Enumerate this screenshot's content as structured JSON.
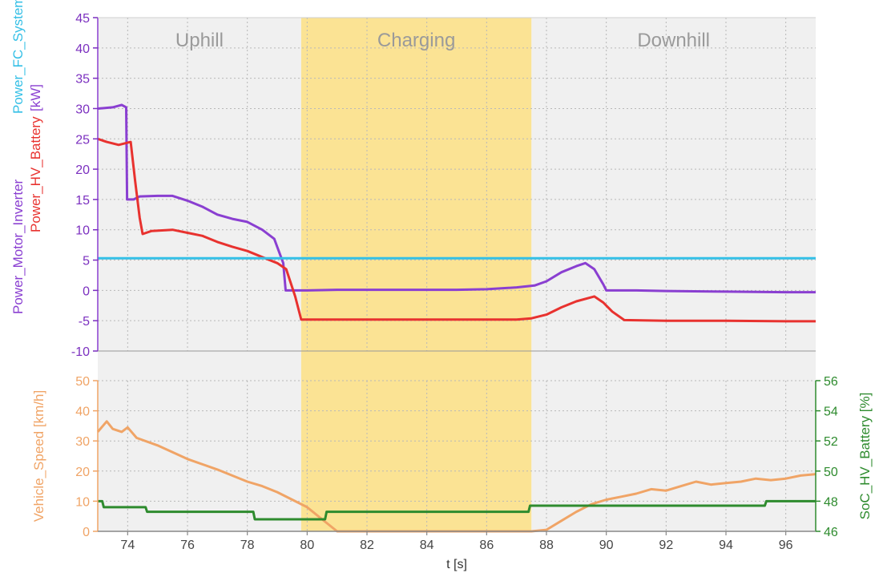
{
  "chart_data": [
    {
      "type": "line",
      "panel": "power",
      "x_range": [
        73,
        97
      ],
      "ylim": [
        -10,
        45
      ],
      "y_ticks": [
        -10,
        -5,
        0,
        5,
        10,
        15,
        20,
        25,
        30,
        35,
        40,
        45
      ],
      "y_tick_color": "#7b2fbf",
      "ylabel_lines": [
        {
          "text": "Power_Motor_Inverter",
          "color": "#8a3fd1"
        },
        {
          "text": "Power_HV_Battery",
          "color": "#e8322f"
        },
        {
          "text": "Power_FC_System",
          "color": "#33bfe6"
        },
        {
          "text": "[kW]",
          "color": "#8a3fd1"
        }
      ],
      "phases": [
        {
          "label": "Uphill",
          "x_start": 73.0,
          "x_end": 79.8,
          "fill": "#f0f0f0"
        },
        {
          "label": "Charging",
          "x_start": 79.8,
          "x_end": 87.5,
          "fill": "#fbe394"
        },
        {
          "label": "Downhill",
          "x_start": 87.5,
          "x_end": 97.0,
          "fill": "#f0f0f0"
        }
      ],
      "series": [
        {
          "name": "Power_Motor_Inverter",
          "color": "#8a3fd1",
          "points": [
            [
              73.0,
              30.0
            ],
            [
              73.5,
              30.2
            ],
            [
              73.8,
              30.6
            ],
            [
              73.95,
              30.2
            ],
            [
              73.98,
              15.0
            ],
            [
              74.2,
              15.0
            ],
            [
              74.4,
              15.5
            ],
            [
              75.0,
              15.6
            ],
            [
              75.5,
              15.6
            ],
            [
              76.0,
              14.8
            ],
            [
              76.5,
              13.8
            ],
            [
              77.0,
              12.5
            ],
            [
              77.5,
              11.8
            ],
            [
              78.0,
              11.3
            ],
            [
              78.5,
              10.0
            ],
            [
              78.9,
              8.5
            ],
            [
              79.2,
              4.5
            ],
            [
              79.28,
              0.0
            ],
            [
              80.0,
              0.0
            ],
            [
              81.0,
              0.1
            ],
            [
              82.0,
              0.1
            ],
            [
              83.0,
              0.1
            ],
            [
              84.0,
              0.1
            ],
            [
              85.0,
              0.1
            ],
            [
              86.0,
              0.2
            ],
            [
              87.0,
              0.5
            ],
            [
              87.6,
              0.8
            ],
            [
              88.0,
              1.5
            ],
            [
              88.5,
              3.0
            ],
            [
              89.0,
              4.0
            ],
            [
              89.3,
              4.5
            ],
            [
              89.6,
              3.5
            ],
            [
              89.9,
              1.0
            ],
            [
              90.0,
              0.0
            ],
            [
              91.0,
              0.0
            ],
            [
              92.0,
              -0.1
            ],
            [
              94.0,
              -0.2
            ],
            [
              96.0,
              -0.3
            ],
            [
              97.0,
              -0.3
            ]
          ]
        },
        {
          "name": "Power_HV_Battery",
          "color": "#e8322f",
          "points": [
            [
              73.0,
              25.0
            ],
            [
              73.3,
              24.5
            ],
            [
              73.7,
              24.0
            ],
            [
              74.1,
              24.5
            ],
            [
              74.25,
              18.0
            ],
            [
              74.4,
              12.0
            ],
            [
              74.5,
              9.3
            ],
            [
              74.8,
              9.8
            ],
            [
              75.5,
              10.0
            ],
            [
              76.0,
              9.5
            ],
            [
              76.5,
              9.0
            ],
            [
              77.0,
              8.0
            ],
            [
              77.5,
              7.2
            ],
            [
              78.0,
              6.5
            ],
            [
              78.5,
              5.5
            ],
            [
              79.0,
              4.5
            ],
            [
              79.3,
              3.5
            ],
            [
              79.6,
              -1.0
            ],
            [
              79.8,
              -4.8
            ],
            [
              81.0,
              -4.8
            ],
            [
              82.0,
              -4.8
            ],
            [
              83.0,
              -4.8
            ],
            [
              84.0,
              -4.8
            ],
            [
              85.0,
              -4.8
            ],
            [
              86.0,
              -4.8
            ],
            [
              87.0,
              -4.8
            ],
            [
              87.5,
              -4.6
            ],
            [
              88.0,
              -4.0
            ],
            [
              88.5,
              -2.8
            ],
            [
              89.0,
              -1.8
            ],
            [
              89.6,
              -1.0
            ],
            [
              89.9,
              -2.0
            ],
            [
              90.2,
              -3.5
            ],
            [
              90.6,
              -4.9
            ],
            [
              92.0,
              -5.0
            ],
            [
              94.0,
              -5.0
            ],
            [
              96.0,
              -5.1
            ],
            [
              97.0,
              -5.1
            ]
          ]
        },
        {
          "name": "Power_FC_System",
          "color": "#33bfe6",
          "points": [
            [
              73.0,
              5.3
            ],
            [
              97.0,
              5.3
            ]
          ]
        }
      ]
    },
    {
      "type": "line",
      "panel": "speed_soc",
      "x_range": [
        73,
        97
      ],
      "xlabel": "t [s]",
      "x_ticks": [
        74,
        76,
        78,
        80,
        82,
        84,
        86,
        88,
        90,
        92,
        94,
        96
      ],
      "ylim": [
        0,
        50
      ],
      "y_ticks": [
        0,
        10,
        20,
        30,
        40,
        50
      ],
      "ylabel": "Vehicle_Speed [km/h]",
      "ylabel_color": "#f0a466",
      "y2lim": [
        46,
        56
      ],
      "y2_ticks": [
        46,
        48,
        50,
        52,
        54,
        56
      ],
      "y2label": "SoC_HV_Battery [%]",
      "y2label_color": "#2e8b2e",
      "series": [
        {
          "name": "Vehicle_Speed",
          "color": "#f0a466",
          "axis": "left",
          "points": [
            [
              73.0,
              33.0
            ],
            [
              73.3,
              36.5
            ],
            [
              73.5,
              34.0
            ],
            [
              73.8,
              33.0
            ],
            [
              74.0,
              34.5
            ],
            [
              74.3,
              31.0
            ],
            [
              75.0,
              28.5
            ],
            [
              76.0,
              24.0
            ],
            [
              77.0,
              20.5
            ],
            [
              78.0,
              16.5
            ],
            [
              78.5,
              15.0
            ],
            [
              79.0,
              13.0
            ],
            [
              79.5,
              10.5
            ],
            [
              80.0,
              8.0
            ],
            [
              80.5,
              4.0
            ],
            [
              81.0,
              0.0
            ],
            [
              85.0,
              0.0
            ],
            [
              87.5,
              0.0
            ],
            [
              88.0,
              0.5
            ],
            [
              88.5,
              3.5
            ],
            [
              89.0,
              6.5
            ],
            [
              89.5,
              9.0
            ],
            [
              90.0,
              10.5
            ],
            [
              90.5,
              11.5
            ],
            [
              91.0,
              12.5
            ],
            [
              91.5,
              14.0
            ],
            [
              92.0,
              13.5
            ],
            [
              92.5,
              15.0
            ],
            [
              93.0,
              16.5
            ],
            [
              93.5,
              15.5
            ],
            [
              94.0,
              16.0
            ],
            [
              94.5,
              16.5
            ],
            [
              95.0,
              17.5
            ],
            [
              95.5,
              17.0
            ],
            [
              96.0,
              17.5
            ],
            [
              96.5,
              18.5
            ],
            [
              97.0,
              19.0
            ]
          ]
        },
        {
          "name": "SoC_HV_Battery",
          "color": "#2e8b2e",
          "axis": "right",
          "points": [
            [
              73.0,
              48.0
            ],
            [
              73.15,
              48.0
            ],
            [
              73.2,
              47.6
            ],
            [
              74.6,
              47.6
            ],
            [
              74.65,
              47.3
            ],
            [
              78.2,
              47.3
            ],
            [
              78.25,
              46.8
            ],
            [
              80.6,
              46.8
            ],
            [
              80.65,
              47.3
            ],
            [
              87.4,
              47.3
            ],
            [
              87.45,
              47.7
            ],
            [
              95.3,
              47.7
            ],
            [
              95.35,
              48.0
            ],
            [
              97.0,
              48.0
            ]
          ]
        }
      ]
    }
  ]
}
